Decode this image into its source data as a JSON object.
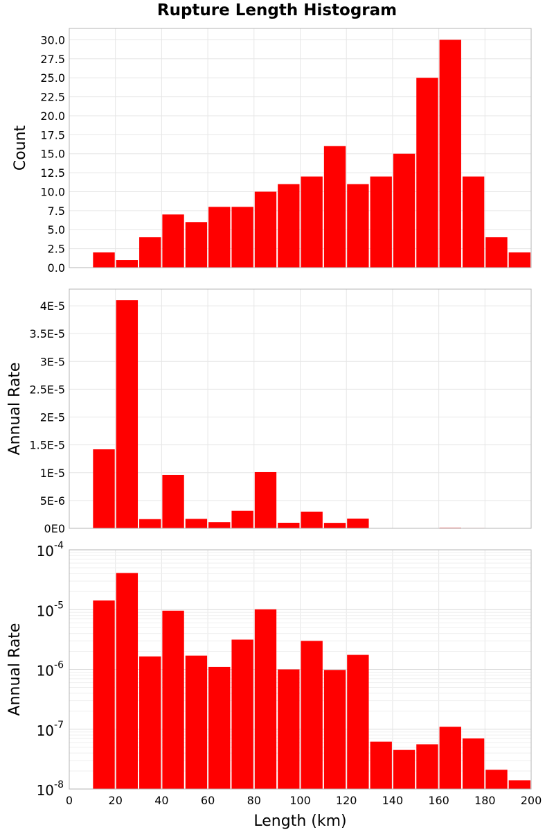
{
  "chart_data": {
    "title": "Rupture Length Histogram",
    "type": "bar",
    "xlabel": "Length (km)",
    "xlim": [
      0,
      200
    ],
    "x_ticks": [
      "0",
      "20",
      "40",
      "60",
      "80",
      "100",
      "120",
      "140",
      "160",
      "180",
      "200"
    ],
    "bin_centers": [
      15,
      25,
      35,
      45,
      55,
      65,
      75,
      85,
      95,
      105,
      115,
      125,
      135,
      145,
      155,
      165,
      175,
      185,
      195
    ],
    "bar_color": "#ff0000",
    "panels": [
      {
        "name": "count",
        "ylabel": "Count",
        "scale": "linear",
        "ylim": [
          0,
          31.5
        ],
        "y_ticks": [
          {
            "value": 0,
            "label": "0.0"
          },
          {
            "value": 2.5,
            "label": "2.5"
          },
          {
            "value": 5,
            "label": "5.0"
          },
          {
            "value": 7.5,
            "label": "7.5"
          },
          {
            "value": 10,
            "label": "10.0"
          },
          {
            "value": 12.5,
            "label": "12.5"
          },
          {
            "value": 15,
            "label": "15.0"
          },
          {
            "value": 17.5,
            "label": "17.5"
          },
          {
            "value": 20,
            "label": "20.0"
          },
          {
            "value": 22.5,
            "label": "22.5"
          },
          {
            "value": 25,
            "label": "25.0"
          },
          {
            "value": 27.5,
            "label": "27.5"
          },
          {
            "value": 30,
            "label": "30.0"
          }
        ],
        "values": [
          2,
          1,
          4,
          7,
          6,
          8,
          8,
          10,
          11,
          12,
          16,
          11,
          12,
          15,
          25,
          30,
          12,
          4,
          2
        ]
      },
      {
        "name": "rate-linear",
        "ylabel": "Annual Rate",
        "scale": "linear",
        "ylim": [
          0,
          4.3e-05
        ],
        "y_ticks": [
          {
            "value": 0,
            "label": "0E0"
          },
          {
            "value": 5e-06,
            "label": "5E-6"
          },
          {
            "value": 1e-05,
            "label": "1E-5"
          },
          {
            "value": 1.5e-05,
            "label": "1.5E-5"
          },
          {
            "value": 2e-05,
            "label": "2E-5"
          },
          {
            "value": 2.5e-05,
            "label": "2.5E-5"
          },
          {
            "value": 3e-05,
            "label": "3E-5"
          },
          {
            "value": 3.5e-05,
            "label": "3.5E-5"
          },
          {
            "value": 4e-05,
            "label": "4E-5"
          }
        ],
        "values": [
          1.42e-05,
          4.1e-05,
          1.65e-06,
          9.6e-06,
          1.7e-06,
          1.1e-06,
          3.15e-06,
          1.01e-05,
          1e-06,
          3e-06,
          9.8e-07,
          1.75e-06,
          6.2e-08,
          4.5e-08,
          5.6e-08,
          1.1e-07,
          7e-08,
          2.1e-08,
          1.4e-08
        ]
      },
      {
        "name": "rate-log",
        "ylabel": "Annual Rate",
        "scale": "log",
        "ylim": [
          1e-08,
          0.0001
        ],
        "y_ticks": [
          {
            "value": 1e-08,
            "base": "10",
            "exp": "-8"
          },
          {
            "value": 1e-07,
            "base": "10",
            "exp": "-7"
          },
          {
            "value": 1e-06,
            "base": "10",
            "exp": "-6"
          },
          {
            "value": 1e-05,
            "base": "10",
            "exp": "-5"
          },
          {
            "value": 0.0001,
            "base": "10",
            "exp": "-4"
          }
        ],
        "values": [
          1.42e-05,
          4.1e-05,
          1.65e-06,
          9.6e-06,
          1.7e-06,
          1.1e-06,
          3.15e-06,
          1.01e-05,
          1e-06,
          3e-06,
          9.8e-07,
          1.75e-06,
          6.2e-08,
          4.5e-08,
          5.6e-08,
          1.1e-07,
          7e-08,
          2.1e-08,
          1.4e-08
        ]
      }
    ]
  }
}
